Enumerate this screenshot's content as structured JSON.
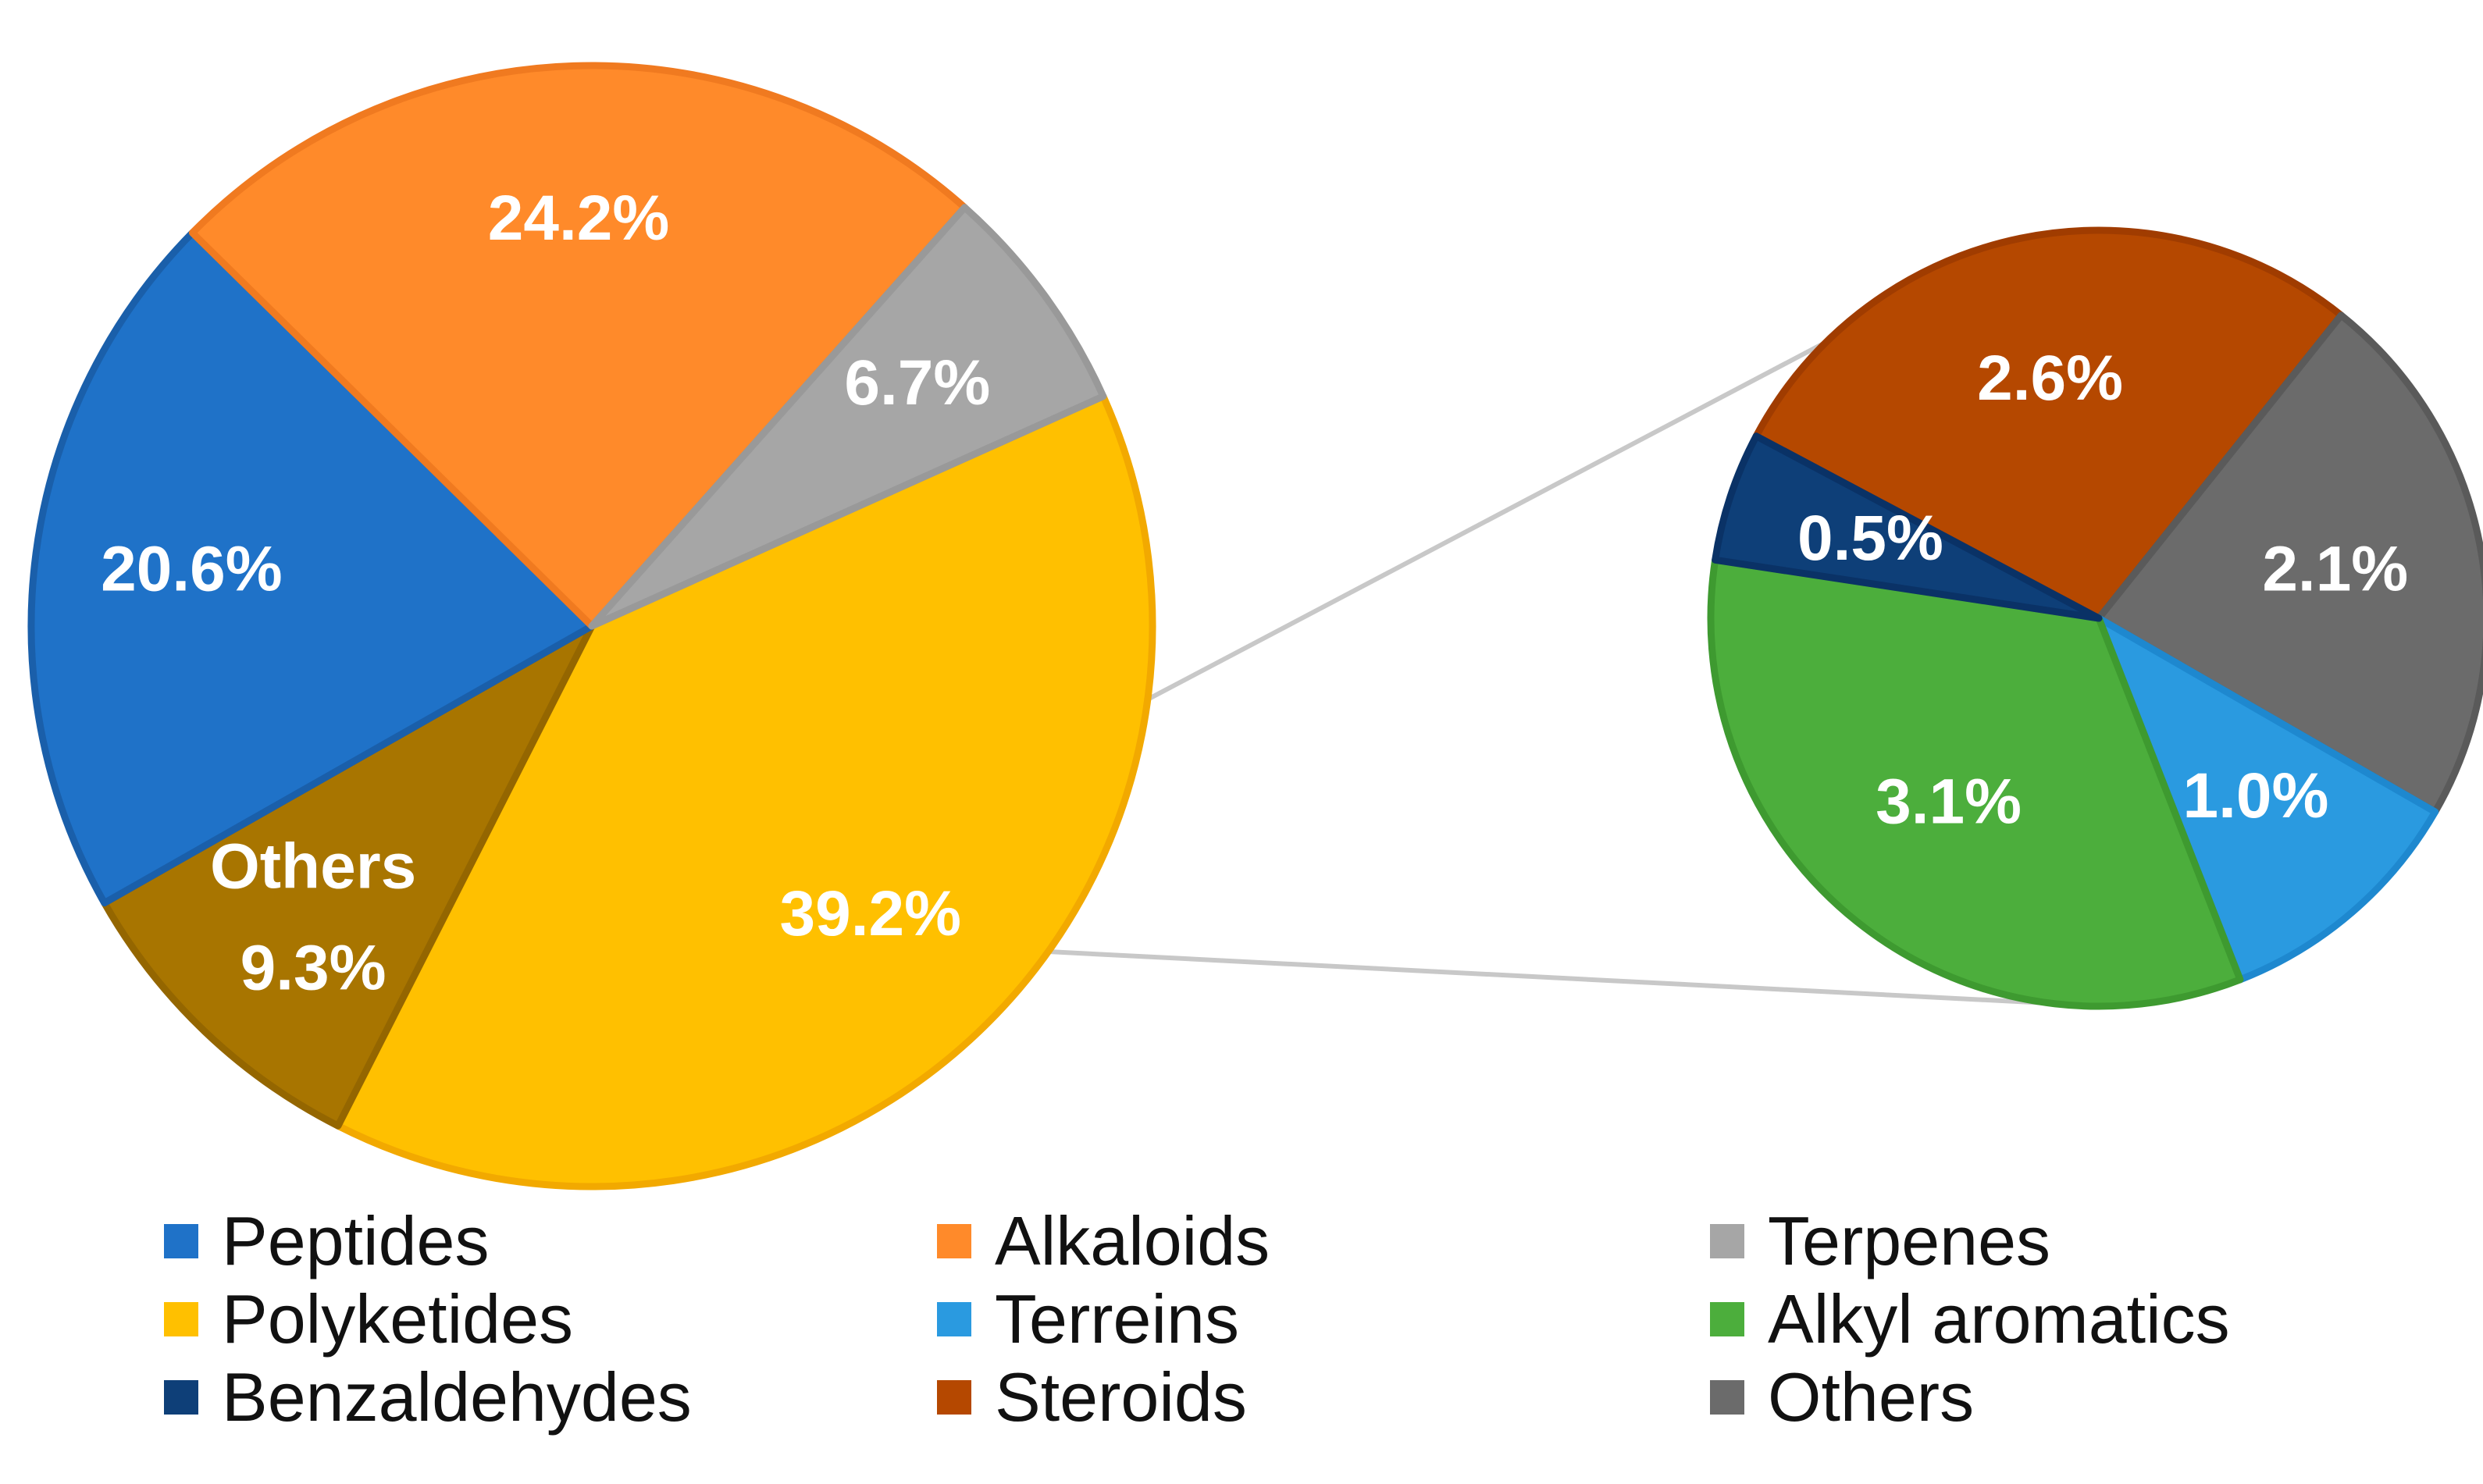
{
  "chart_data": [
    {
      "type": "pie",
      "title": "",
      "slices": [
        {
          "label": "Polyketides",
          "value": 39.2,
          "text": "39.2%",
          "color": "#FFC000",
          "stroke": "#F2A900"
        },
        {
          "label": "Others",
          "value": 9.3,
          "text": "9.3%",
          "label_line1": "Others",
          "color": "#A87500",
          "stroke": "#946600"
        },
        {
          "label": "Peptides",
          "value": 20.6,
          "text": "20.6%",
          "color": "#1F72C8",
          "stroke": "#1A5FAA"
        },
        {
          "label": "Alkaloids",
          "value": 24.2,
          "text": "24.2%",
          "color": "#FF8A2A",
          "stroke": "#F07A20"
        },
        {
          "label": "Terpenes",
          "value": 6.7,
          "text": "6.7%",
          "color": "#A6A6A6",
          "stroke": "#999999"
        }
      ]
    },
    {
      "type": "pie",
      "title": "",
      "slices": [
        {
          "label": "Steroids",
          "value": 2.6,
          "text": "2.6%",
          "color": "#B54800",
          "stroke": "#A03C00"
        },
        {
          "label": "Others",
          "value": 2.1,
          "text": "2.1%",
          "color": "#6B6B6B",
          "stroke": "#5A5A5A"
        },
        {
          "label": "Terreins",
          "value": 1.0,
          "text": "1.0%",
          "color": "#2A9AE0",
          "stroke": "#1E88CF"
        },
        {
          "label": "Alkyl aromatics",
          "value": 3.1,
          "text": "3.1%",
          "color": "#4CAE3C",
          "stroke": "#3E9A30"
        },
        {
          "label": "Benzaldehydes",
          "value": 0.5,
          "text": "0.5%",
          "color": "#0E3F78",
          "stroke": "#0A3266"
        }
      ]
    }
  ],
  "legend": {
    "placement": "bottom",
    "items": [
      {
        "label": "Peptides",
        "color": "#1F72C8"
      },
      {
        "label": "Alkaloids",
        "color": "#FF8A2A"
      },
      {
        "label": "Terpenes",
        "color": "#A6A6A6"
      },
      {
        "label": "Polyketides",
        "color": "#FFC000"
      },
      {
        "label": "Terreins",
        "color": "#2A9AE0"
      },
      {
        "label": "Alkyl aromatics",
        "color": "#4CAE3C"
      },
      {
        "label": "Benzaldehydes",
        "color": "#0E3F78"
      },
      {
        "label": "Steroids",
        "color": "#B54800"
      },
      {
        "label": "Others",
        "color": "#6B6B6B"
      }
    ]
  }
}
